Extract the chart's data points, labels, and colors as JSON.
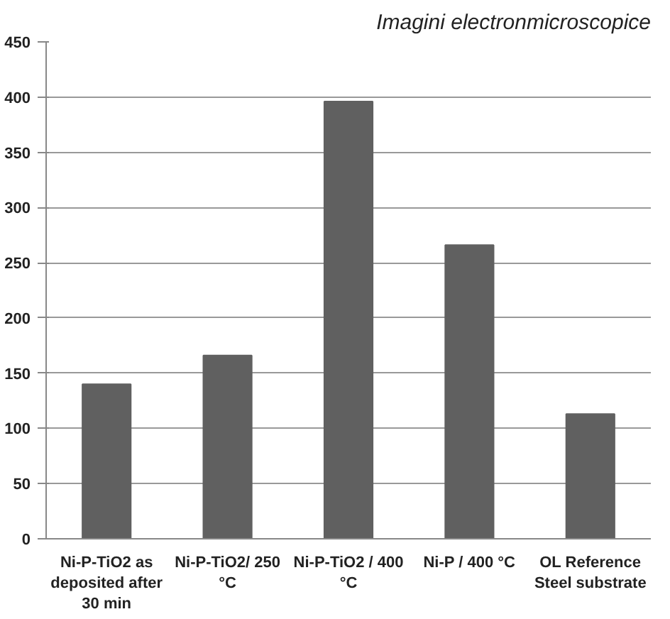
{
  "chart_data": {
    "type": "bar",
    "annotations": [
      "Imagini electronmicroscopice"
    ],
    "categories": [
      "Ni-P-TiO2 as deposited after 30 min",
      "Ni-P-TiO2/ 250 °C",
      "Ni-P-TiO2 / 400 °C",
      "Ni-P / 400 °C",
      "OL Reference Steel substrate"
    ],
    "values": [
      140,
      166,
      396,
      266,
      113
    ],
    "color": "#606060",
    "ylim": [
      0,
      450
    ],
    "yticks": [
      0,
      50,
      100,
      150,
      200,
      250,
      300,
      350,
      400,
      450
    ],
    "grid": "y"
  }
}
